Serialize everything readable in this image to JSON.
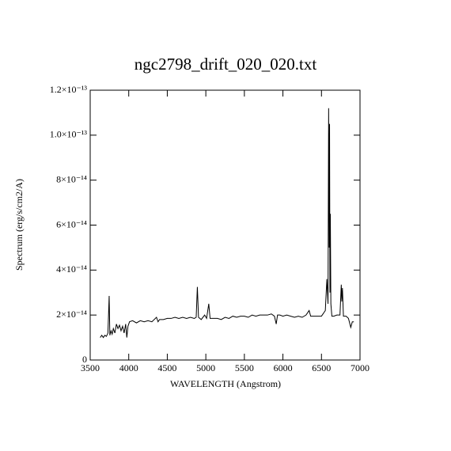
{
  "chart_data": {
    "type": "line",
    "title": "ngc2798_drift_020_020.txt",
    "xlabel": "WAVELENGTH (Angstrom)",
    "ylabel": "Spectrum (erg/s/cm2/A)",
    "color": "#000000",
    "xlim": [
      3500,
      7000
    ],
    "xticks": [
      3500,
      4000,
      4500,
      5000,
      5500,
      6000,
      6500,
      7000
    ],
    "ylim": [
      0,
      1.2e-13
    ],
    "yticks": [
      0,
      {
        "value": 2e-14,
        "label": "2×10⁻¹⁴"
      },
      {
        "value": 4e-14,
        "label": "4×10⁻¹⁴"
      },
      {
        "value": 6e-14,
        "label": "6×10⁻¹⁴"
      },
      {
        "value": 8e-14,
        "label": "8×10⁻¹⁴"
      },
      {
        "value": 1e-13,
        "label": "1.0×10⁻¹³"
      },
      {
        "value": 1.2e-13,
        "label": "1.2×10⁻¹³"
      }
    ],
    "x": [
      3630,
      3650,
      3670,
      3690,
      3710,
      3730,
      3746,
      3755,
      3770,
      3785,
      3800,
      3820,
      3840,
      3860,
      3880,
      3900,
      3920,
      3940,
      3960,
      3975,
      3990,
      4010,
      4050,
      4100,
      4150,
      4200,
      4250,
      4300,
      4360,
      4380,
      4400,
      4450,
      4500,
      4550,
      4600,
      4650,
      4700,
      4750,
      4800,
      4850,
      4875,
      4890,
      4905,
      4940,
      4985,
      5010,
      5038,
      5055,
      5100,
      5150,
      5200,
      5250,
      5300,
      5350,
      5400,
      5450,
      5500,
      5550,
      5600,
      5650,
      5700,
      5750,
      5800,
      5850,
      5890,
      5913,
      5930,
      5960,
      6000,
      6050,
      6100,
      6150,
      6200,
      6250,
      6300,
      6340,
      6360,
      6400,
      6450,
      6500,
      6550,
      6570,
      6585,
      6593,
      6600,
      6605,
      6610,
      6615,
      6622,
      6635,
      6660,
      6700,
      6740,
      6757,
      6764,
      6772,
      6785,
      6820,
      6850,
      6880,
      6900,
      6920
    ],
    "values": [
      1e-14,
      1.1e-14,
      1e-14,
      1.1e-14,
      1.05e-14,
      1.2e-14,
      2.85e-14,
      1.1e-14,
      1.3e-14,
      1.15e-14,
      1.4e-14,
      1.2e-14,
      1.6e-14,
      1.4e-14,
      1.55e-14,
      1.3e-14,
      1.5e-14,
      1.2e-14,
      1.6e-14,
      1e-14,
      1.5e-14,
      1.7e-14,
      1.75e-14,
      1.65e-14,
      1.75e-14,
      1.7e-14,
      1.75e-14,
      1.7e-14,
      1.9e-14,
      1.7e-14,
      1.8e-14,
      1.8e-14,
      1.85e-14,
      1.85e-14,
      1.9e-14,
      1.85e-14,
      1.9e-14,
      1.85e-14,
      1.9e-14,
      1.85e-14,
      1.9e-14,
      3.25e-14,
      1.9e-14,
      1.8e-14,
      2e-14,
      1.85e-14,
      2.5e-14,
      1.85e-14,
      1.85e-14,
      1.85e-14,
      1.8e-14,
      1.9e-14,
      1.85e-14,
      1.95e-14,
      1.9e-14,
      1.95e-14,
      1.95e-14,
      1.9e-14,
      2e-14,
      1.95e-14,
      2e-14,
      2e-14,
      2e-14,
      2.05e-14,
      1.95e-14,
      1.6e-14,
      2e-14,
      2e-14,
      1.95e-14,
      2e-14,
      1.95e-14,
      1.9e-14,
      1.95e-14,
      1.9e-14,
      2e-14,
      2.2e-14,
      1.95e-14,
      1.95e-14,
      1.95e-14,
      1.95e-14,
      2.2e-14,
      3.6e-14,
      2.5e-14,
      1.12e-13,
      5e-14,
      1.05e-13,
      3e-14,
      6.5e-14,
      2.5e-14,
      1.95e-14,
      1.95e-14,
      2e-14,
      2e-14,
      3.35e-14,
      2.6e-14,
      3.2e-14,
      1.95e-14,
      1.95e-14,
      1.85e-14,
      1.45e-14,
      1.7e-14,
      1.7e-14
    ]
  }
}
